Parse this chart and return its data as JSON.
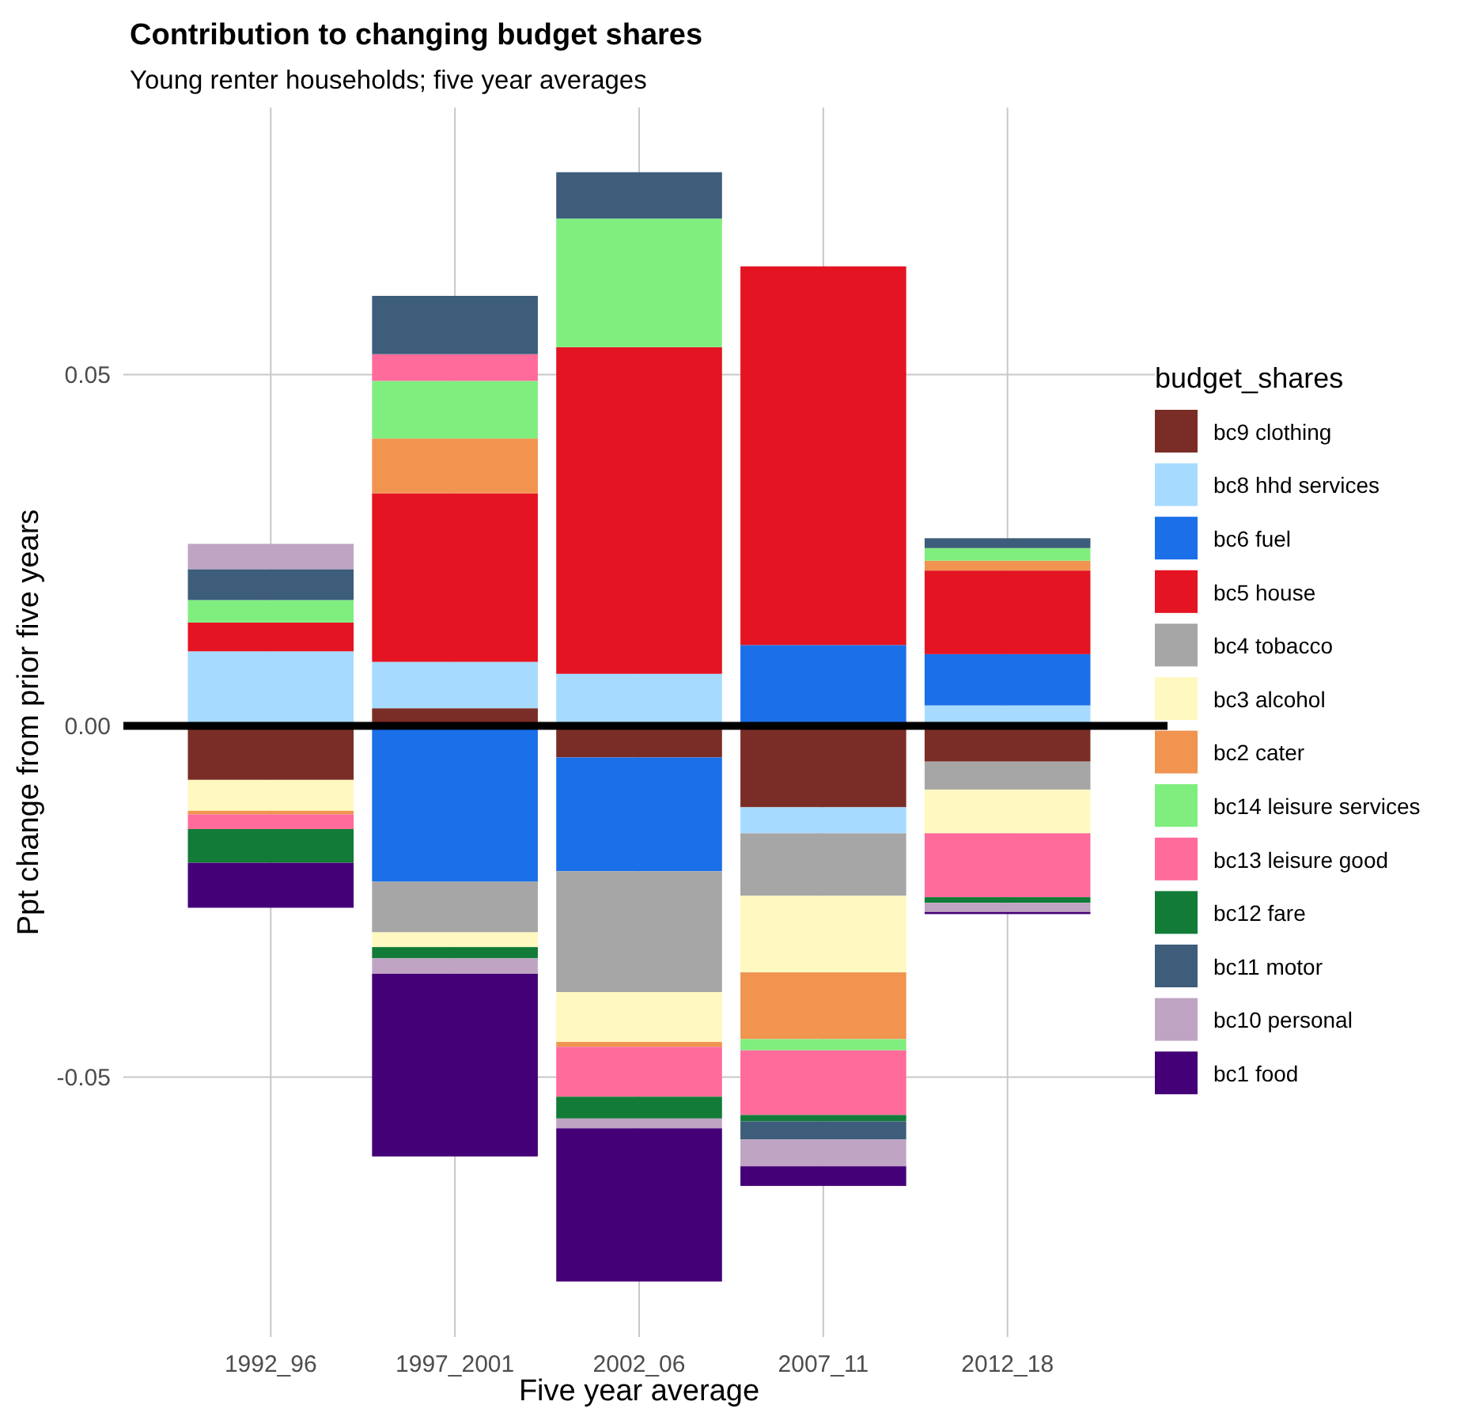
{
  "chart_data": {
    "type": "bar",
    "stacked": true,
    "title": "Contribution to changing budget shares",
    "subtitle": "Young renter households; five year averages",
    "xlabel": "Five year average",
    "ylabel": "Ppt change from prior five years",
    "legend_title": "budget_shares",
    "legend": "right",
    "grid": true,
    "categories": [
      "1992_96",
      "1997_2001",
      "2002_06",
      "2007_11",
      "2012_18"
    ],
    "ylim": [
      -0.087,
      0.088
    ],
    "yticks": [
      {
        "value": -0.05,
        "label": "-0.05"
      },
      {
        "value": 0,
        "label": "0.00"
      },
      {
        "value": 0.05,
        "label": "0.05"
      }
    ],
    "ref_lines": [
      {
        "axis": "y",
        "value": 0,
        "color": "#000000"
      }
    ],
    "series": [
      {
        "name": "bc9 clothing",
        "color": "#7a2d26",
        "values": [
          -0.0077,
          0.0025,
          -0.0045,
          -0.0116,
          -0.0051
        ]
      },
      {
        "name": "bc8 hhd services",
        "color": "#a6dbff",
        "values": [
          0.0106,
          0.0066,
          0.0074,
          -0.0037,
          0.0029
        ]
      },
      {
        "name": "bc6 fuel",
        "color": "#1b6fe8",
        "values": [
          null,
          -0.0222,
          -0.0162,
          0.0115,
          0.0073
        ]
      },
      {
        "name": "bc5 house",
        "color": "#e41422",
        "values": [
          0.0041,
          0.024,
          0.0465,
          0.0539,
          0.0119
        ]
      },
      {
        "name": "bc4 tobacco",
        "color": "#a6a6a6",
        "values": [
          null,
          -0.0072,
          -0.0172,
          -0.0089,
          -0.004
        ]
      },
      {
        "name": "bc3 alcohol",
        "color": "#fff8c0",
        "values": [
          -0.0044,
          -0.0021,
          -0.0071,
          -0.0109,
          -0.0062
        ]
      },
      {
        "name": "bc2 cater",
        "color": "#f09450",
        "values": [
          -0.0005,
          0.0078,
          -0.0007,
          -0.0095,
          0.0014
        ]
      },
      {
        "name": "bc14 leisure services",
        "color": "#80ee7e",
        "values": [
          0.0032,
          0.0082,
          0.0183,
          -0.0016,
          0.0018
        ]
      },
      {
        "name": "bc13 leisure good",
        "color": "#ff6b9b",
        "values": [
          -0.0021,
          0.0038,
          -0.0071,
          -0.0092,
          -0.0091
        ]
      },
      {
        "name": "bc12 fare",
        "color": "#117b37",
        "values": [
          -0.0048,
          -0.0016,
          -0.0031,
          -0.0009,
          -0.0008
        ]
      },
      {
        "name": "bc11 motor",
        "color": "#3d5d7a",
        "values": [
          0.0044,
          0.0083,
          0.0066,
          -0.0026,
          0.0014
        ]
      },
      {
        "name": "bc10 personal",
        "color": "#c0a4c4",
        "values": [
          0.0036,
          -0.0022,
          -0.0014,
          -0.0038,
          -0.0013
        ]
      },
      {
        "name": "bc1 food",
        "color": "#440077",
        "values": [
          -0.0064,
          -0.026,
          -0.0218,
          -0.0028,
          -0.0003
        ]
      }
    ]
  }
}
